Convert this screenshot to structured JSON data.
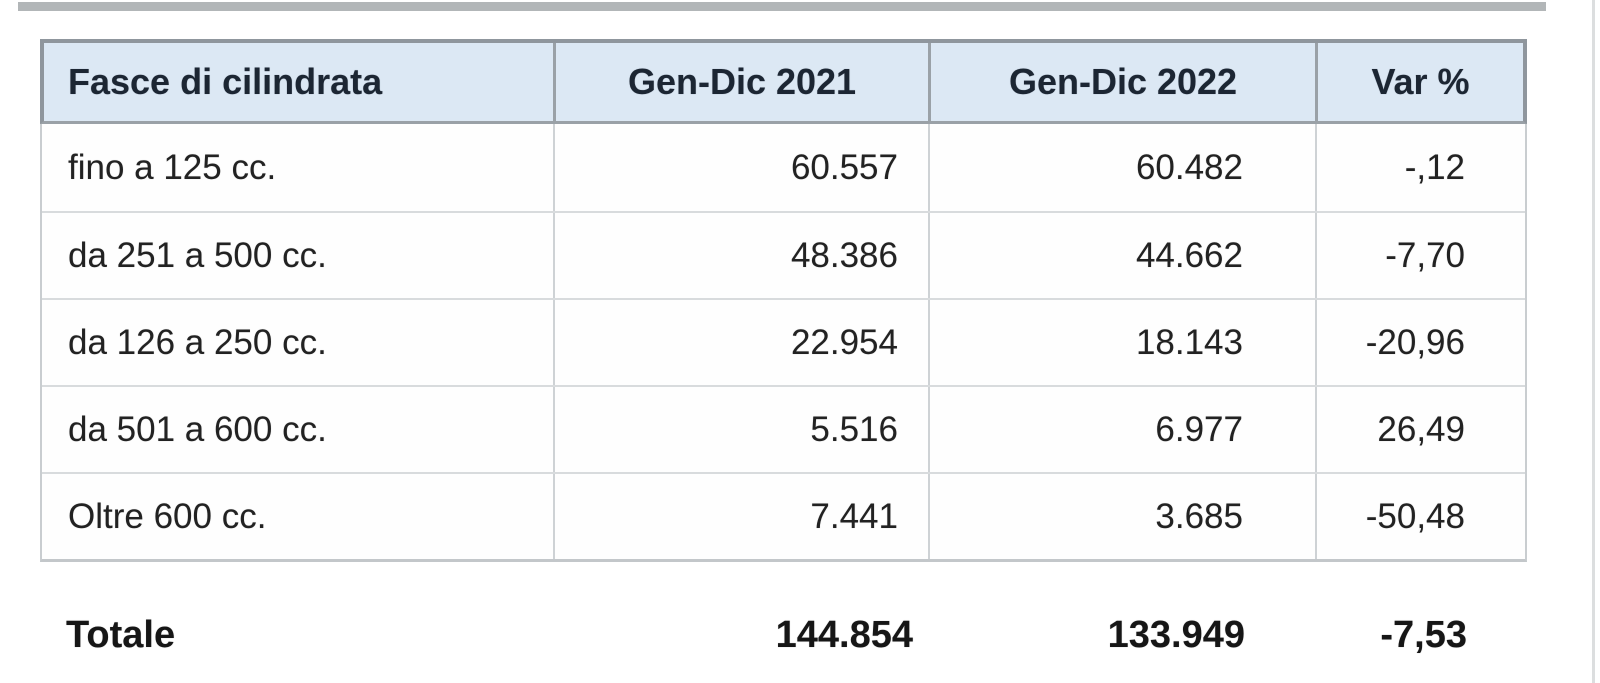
{
  "page": {
    "background": "#ffffff",
    "top_bar_color": "#b2b6b8",
    "header_bg": "#dce8f4",
    "header_border_color": "#8f969d",
    "grid_line_color": "#d8dbdd"
  },
  "chart_data": {
    "type": "table",
    "title": "",
    "columns": [
      "Fasce di cilindrata",
      "Gen-Dic 2021",
      "Gen-Dic 2022",
      "Var %"
    ],
    "rows": [
      [
        "fino a 125 cc.",
        "60.557",
        "60.482",
        "-,12"
      ],
      [
        "da 251 a 500 cc.",
        "48.386",
        "44.662",
        "-7,70"
      ],
      [
        "da 126 a 250 cc.",
        "22.954",
        "18.143",
        "-20,96"
      ],
      [
        "da 501 a 600 cc.",
        "5.516",
        "6.977",
        "26,49"
      ],
      [
        "Oltre 600 cc.",
        "7.441",
        "3.685",
        "-50,48"
      ]
    ],
    "total_row": [
      "Totale",
      "144.854",
      "133.949",
      "-7,53"
    ],
    "numeric": {
      "categories": [
        "fino a 125 cc.",
        "da 251 a 500 cc.",
        "da 126 a 250 cc.",
        "da 501 a 600 cc.",
        "Oltre 600 cc."
      ],
      "series": [
        {
          "name": "Gen-Dic 2021",
          "values": [
            60557,
            48386,
            22954,
            5516,
            7441
          ],
          "total": 144854
        },
        {
          "name": "Gen-Dic 2022",
          "values": [
            60482,
            44662,
            18143,
            6977,
            3685
          ],
          "total": 133949
        },
        {
          "name": "Var %",
          "values": [
            -0.12,
            -7.7,
            -20.96,
            26.49,
            -50.48
          ],
          "total": -7.53
        }
      ]
    }
  }
}
